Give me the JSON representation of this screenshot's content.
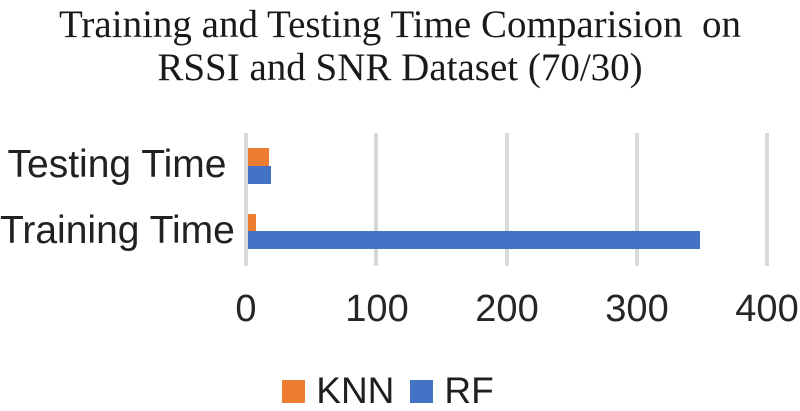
{
  "chart_data": {
    "type": "bar",
    "orientation": "horizontal",
    "title": "Training and Testing Time Comparision  on RSSI and SNR Dataset (70/30)",
    "title_line1": "Training and Testing Time Comparision  on",
    "title_line2": "RSSI and SNR Dataset (70/30)",
    "categories": [
      "Testing Time",
      "Training Time"
    ],
    "series": [
      {
        "name": "KNN",
        "color": "#ED7D31",
        "values": [
          16,
          6
        ]
      },
      {
        "name": "RF",
        "color": "#4472C4",
        "values": [
          18,
          347
        ]
      }
    ],
    "xlim": [
      0,
      400
    ],
    "x_ticks": [
      "0",
      "100",
      "200",
      "300",
      "400"
    ],
    "xlabel": "",
    "ylabel": "",
    "grid": "vertical-gridlines",
    "gridline_color": "#D9D9D9",
    "text_color": "#1f1f1f",
    "legend_position": "bottom"
  }
}
